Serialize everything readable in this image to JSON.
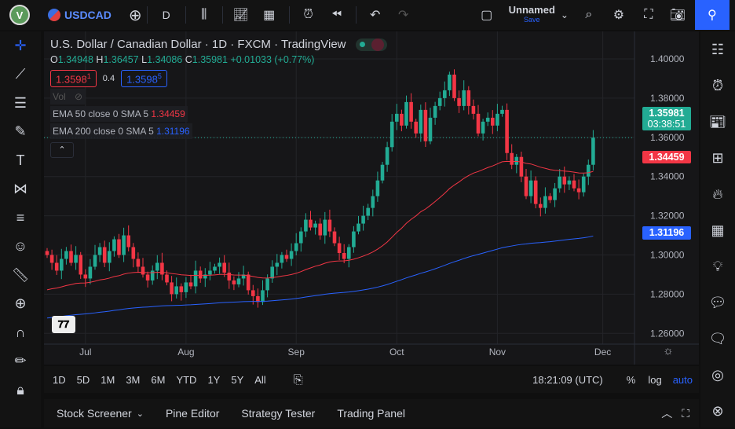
{
  "topbar": {
    "symbol": "USDCAD",
    "interval": "D",
    "layout_name": "Unnamed",
    "save_label": "Save",
    "avatar": "V"
  },
  "legend": {
    "title": "U.S. Dollar / Canadian Dollar · 1D · FXCM · TradingView",
    "o_label": "O",
    "o": "1.34948",
    "h_label": "H",
    "h": "1.36457",
    "l_label": "L",
    "l": "1.34086",
    "c_label": "C",
    "c": "1.35981",
    "change": "+0.01033 (+0.77%)",
    "sell": "1.3598",
    "sell_sup": "1",
    "spread": "0.4",
    "buy": "1.3598",
    "buy_sup": "5",
    "vol": "Vol",
    "ema50_label": "EMA 50 close 0 SMA 5",
    "ema50_value": "1.34459",
    "ema200_label": "EMA 200 close 0 SMA 5",
    "ema200_value": "1.31196"
  },
  "price_tags": {
    "last": "1.35981",
    "countdown": "03:38:51",
    "ema50": "1.34459",
    "ema200": "1.31196"
  },
  "colors": {
    "up": "#22ab94",
    "down": "#f23645",
    "ema50": "#f23645",
    "ema200": "#2962ff"
  },
  "chart_data": {
    "type": "candlestick",
    "title": "U.S. Dollar / Canadian Dollar · 1D · FXCM",
    "ylim": [
      1.255,
      1.405
    ],
    "y_ticks": [
      "1.40000",
      "1.38000",
      "1.36000",
      "1.34000",
      "1.32000",
      "1.30000",
      "1.28000",
      "1.26000"
    ],
    "y_tick_values": [
      1.4,
      1.38,
      1.36,
      1.34,
      1.32,
      1.3,
      1.28,
      1.26
    ],
    "x_ticks": [
      {
        "label": "Jul",
        "index": 8
      },
      {
        "label": "Aug",
        "index": 29
      },
      {
        "label": "Sep",
        "index": 52
      },
      {
        "label": "Oct",
        "index": 73
      },
      {
        "label": "Nov",
        "index": 94
      },
      {
        "label": "Dec",
        "index": 116
      }
    ],
    "first_open": 1.302,
    "closes": [
      1.3,
      1.296,
      1.292,
      1.298,
      1.302,
      1.296,
      1.3,
      1.29,
      1.288,
      1.294,
      1.3,
      1.304,
      1.296,
      1.302,
      1.308,
      1.3,
      1.31,
      1.304,
      1.298,
      1.294,
      1.29,
      1.287,
      1.292,
      1.296,
      1.29,
      1.286,
      1.28,
      1.284,
      1.281,
      1.286,
      1.284,
      1.292,
      1.288,
      1.29,
      1.292,
      1.294,
      1.296,
      1.291,
      1.287,
      1.285,
      1.288,
      1.29,
      1.282,
      1.279,
      1.276,
      1.282,
      1.288,
      1.294,
      1.296,
      1.3,
      1.298,
      1.302,
      1.306,
      1.312,
      1.318,
      1.314,
      1.316,
      1.31,
      1.318,
      1.312,
      1.306,
      1.301,
      1.298,
      1.304,
      1.312,
      1.316,
      1.32,
      1.324,
      1.33,
      1.338,
      1.346,
      1.355,
      1.368,
      1.372,
      1.366,
      1.378,
      1.368,
      1.362,
      1.374,
      1.358,
      1.37,
      1.376,
      1.38,
      1.384,
      1.392,
      1.38,
      1.376,
      1.384,
      1.376,
      1.372,
      1.362,
      1.368,
      1.37,
      1.366,
      1.372,
      1.374,
      1.352,
      1.346,
      1.35,
      1.34,
      1.33,
      1.338,
      1.326,
      1.324,
      1.33,
      1.328,
      1.334,
      1.34,
      1.336,
      1.338,
      1.334,
      1.332,
      1.34,
      1.346,
      1.35981
    ],
    "ema50_seed": 1.2815,
    "ema200_seed": 1.2675
  },
  "rangebar": {
    "ranges": [
      "1D",
      "5D",
      "1M",
      "3M",
      "6M",
      "YTD",
      "1Y",
      "5Y",
      "All"
    ],
    "clock": "18:21:09 (UTC)",
    "pct": "%",
    "log": "log",
    "auto": "auto"
  },
  "bottom": {
    "tabs": [
      "Stock Screener",
      "Pine Editor",
      "Strategy Tester",
      "Trading Panel"
    ]
  }
}
